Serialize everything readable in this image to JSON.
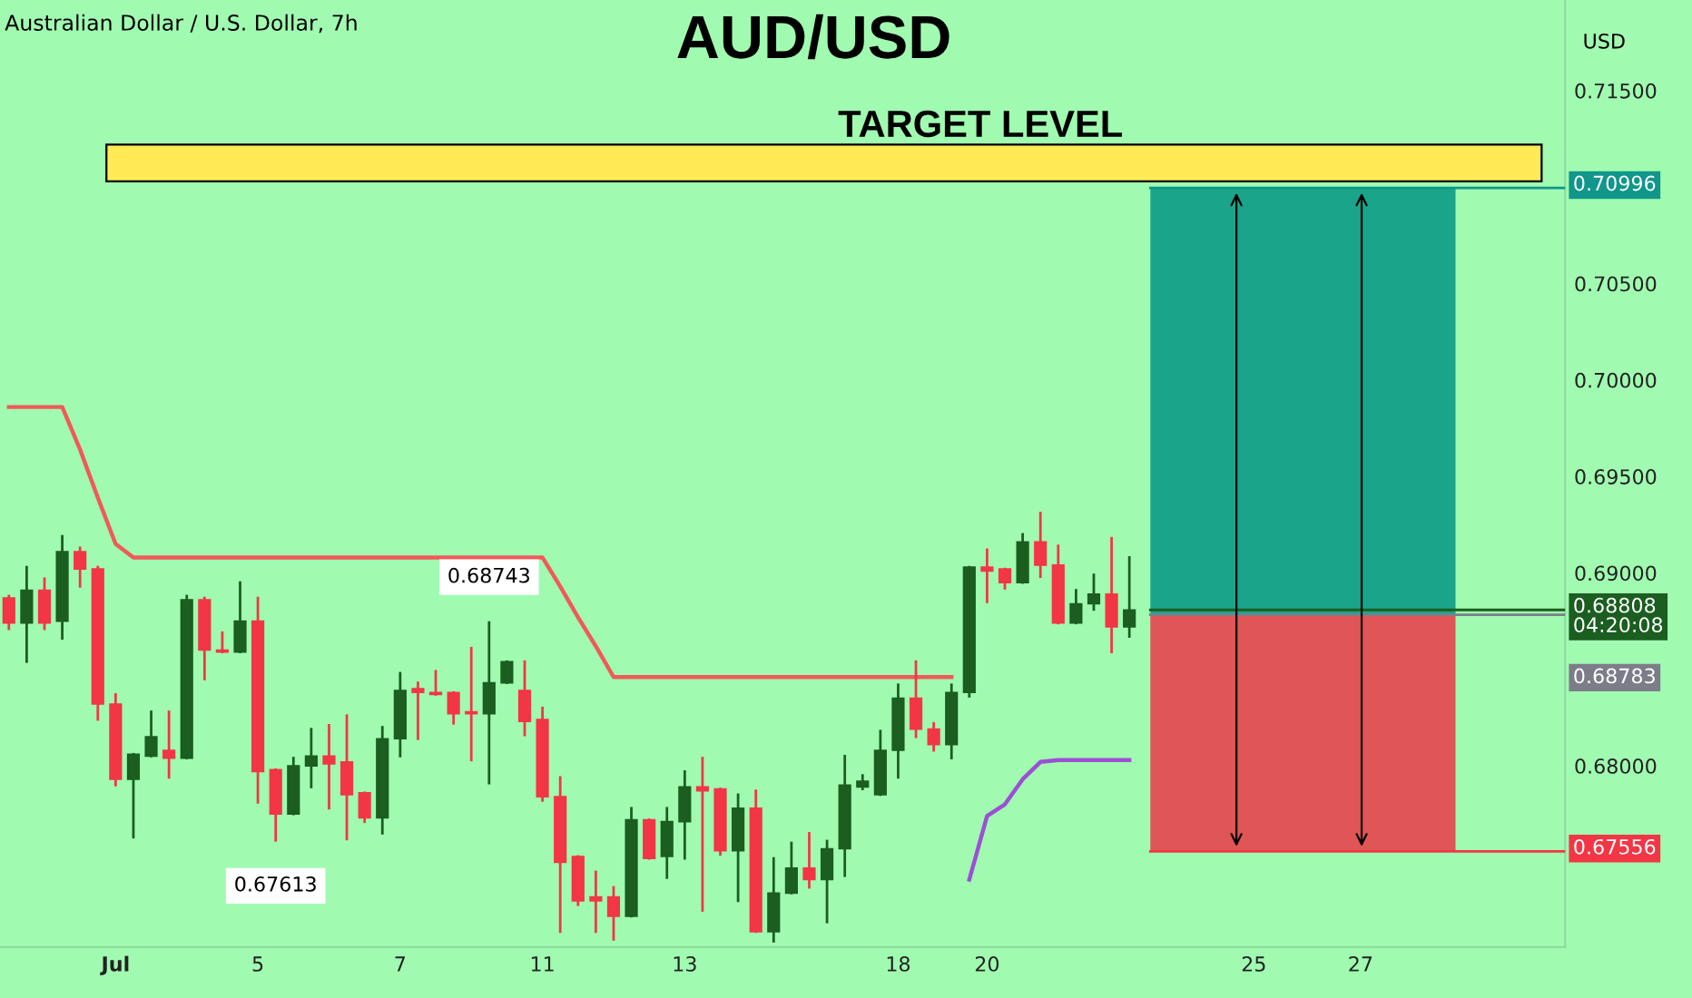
{
  "chart_data": {
    "type": "candlestick",
    "title": "AUD/USD",
    "subtitle": "Australian Dollar / U.S. Dollar, 7h",
    "ylabel": "USD",
    "categories": [
      null,
      null,
      null,
      null,
      null,
      null,
      "Jul",
      null,
      null,
      null,
      null,
      null,
      null,
      null,
      "5",
      null,
      null,
      null,
      null,
      null,
      null,
      null,
      "7",
      null,
      null,
      null,
      null,
      null,
      null,
      null,
      "11",
      null,
      null,
      null,
      null,
      null,
      null,
      null,
      "13",
      null,
      null,
      null,
      null,
      null,
      null,
      null,
      null,
      null,
      null,
      null,
      "18",
      null,
      null,
      null,
      null,
      "20",
      null,
      null,
      null,
      null,
      null,
      null,
      null,
      null,
      null,
      null,
      null,
      null,
      null,
      null,
      "25",
      null,
      null,
      null,
      null,
      null,
      "27",
      null,
      null,
      null,
      null,
      null,
      null,
      null,
      null,
      null,
      null,
      null
    ],
    "ohlc": [
      [
        0.6887,
        0.6888,
        0.6871,
        0.6874
      ],
      [
        0.6874,
        0.6903,
        0.6854,
        0.6891
      ],
      [
        0.6891,
        0.6897,
        0.6871,
        0.6874
      ],
      [
        0.6875,
        0.6919,
        0.6866,
        0.6911
      ],
      [
        0.6911,
        0.6913,
        0.6893,
        0.6902
      ],
      [
        0.6902,
        0.6903,
        0.6824,
        0.6832
      ],
      [
        0.6832,
        0.6837,
        0.679,
        0.6793
      ],
      [
        0.6793,
        0.6806,
        0.6763,
        0.6806
      ],
      [
        0.6805,
        0.6828,
        0.6805,
        0.6815
      ],
      [
        0.6808,
        0.6828,
        0.6794,
        0.6804
      ],
      [
        0.6804,
        0.6888,
        0.6804,
        0.6886
      ],
      [
        0.6886,
        0.6887,
        0.6845,
        0.686
      ],
      [
        0.686,
        0.6869,
        0.6859,
        0.6859
      ],
      [
        0.6859,
        0.6895,
        0.6859,
        0.6875
      ],
      [
        0.6875,
        0.6887,
        0.6781,
        0.6797
      ],
      [
        0.6798,
        0.6798,
        0.67613,
        0.6775
      ],
      [
        0.6775,
        0.6804,
        0.6775,
        0.68
      ],
      [
        0.68,
        0.6819,
        0.6789,
        0.6805
      ],
      [
        0.6805,
        0.6821,
        0.6778,
        0.6801
      ],
      [
        0.6802,
        0.6826,
        0.6762,
        0.6785
      ],
      [
        0.6786,
        0.6786,
        0.6771,
        0.6773
      ],
      [
        0.6773,
        0.682,
        0.6765,
        0.6814
      ],
      [
        0.6814,
        0.6848,
        0.6805,
        0.6839
      ],
      [
        0.684,
        0.6843,
        0.6814,
        0.6838
      ],
      [
        0.6838,
        0.6849,
        0.6837,
        0.6837
      ],
      [
        0.6838,
        0.6838,
        0.6822,
        0.6827
      ],
      [
        0.6828,
        0.6861,
        0.6803,
        0.6827
      ],
      [
        0.6827,
        0.68743,
        0.6791,
        0.6843
      ],
      [
        0.6843,
        0.6854,
        0.6843,
        0.6854
      ],
      [
        0.6839,
        0.6854,
        0.6816,
        0.6823
      ],
      [
        0.6824,
        0.683,
        0.6782,
        0.6784
      ],
      [
        0.6784,
        0.6794,
        0.6714,
        0.675
      ],
      [
        0.6753,
        0.6753,
        0.6728,
        0.673
      ],
      [
        0.6732,
        0.6745,
        0.6714,
        0.673
      ],
      [
        0.6732,
        0.6737,
        0.671,
        0.6722
      ],
      [
        0.6722,
        0.6778,
        0.6722,
        0.6772
      ],
      [
        0.6772,
        0.6772,
        0.6752,
        0.6752
      ],
      [
        0.6753,
        0.6778,
        0.6742,
        0.6771
      ],
      [
        0.6771,
        0.6797,
        0.6752,
        0.6789
      ],
      [
        0.6789,
        0.6804,
        0.6725,
        0.6787
      ],
      [
        0.6788,
        0.6788,
        0.6754,
        0.6756
      ],
      [
        0.6756,
        0.6785,
        0.673,
        0.6778
      ],
      [
        0.6778,
        0.6787,
        0.6714,
        0.6714
      ],
      [
        0.6714,
        0.6752,
        0.6709,
        0.6734
      ],
      [
        0.6734,
        0.676,
        0.6734,
        0.6747
      ],
      [
        0.6747,
        0.6765,
        0.6737,
        0.6741
      ],
      [
        0.6741,
        0.6761,
        0.6719,
        0.6757
      ],
      [
        0.6757,
        0.6805,
        0.6743,
        0.679
      ],
      [
        0.6789,
        0.6795,
        0.6788,
        0.6792
      ],
      [
        0.6785,
        0.6818,
        0.6785,
        0.6808
      ],
      [
        0.6808,
        0.6842,
        0.6794,
        0.6835
      ],
      [
        0.6835,
        0.6854,
        0.6815,
        0.6819
      ],
      [
        0.6819,
        0.6822,
        0.6808,
        0.6811
      ],
      [
        0.6811,
        0.6842,
        0.6804,
        0.6838
      ],
      [
        0.6838,
        0.6903,
        0.6836,
        0.6903
      ],
      [
        0.6903,
        0.6912,
        0.6885,
        0.6901
      ],
      [
        0.6902,
        0.6902,
        0.6892,
        0.6895
      ],
      [
        0.6895,
        0.692,
        0.6895,
        0.6916
      ],
      [
        0.6916,
        0.6931,
        0.6898,
        0.6904
      ],
      [
        0.6904,
        0.6914,
        0.6874,
        0.6874
      ],
      [
        0.6874,
        0.6891,
        0.6874,
        0.6884
      ],
      [
        0.6884,
        0.6899,
        0.6881,
        0.6889
      ],
      [
        0.6889,
        0.6918,
        0.6859,
        0.6872
      ],
      [
        0.6872,
        0.6908,
        0.6867,
        0.68808
      ],
      null,
      null,
      null,
      null,
      null,
      null,
      null,
      null,
      null,
      null,
      null,
      null,
      null,
      null,
      null,
      null,
      null,
      null,
      null,
      null,
      null,
      null,
      null,
      null
    ],
    "series": [
      {
        "type": "line",
        "color": "#f05a5a",
        "values": [
          0.6986,
          0.6986,
          0.6986,
          0.6986,
          0.6964,
          0.6939,
          0.6915,
          0.6908,
          0.6908,
          0.6908,
          0.6908,
          0.6908,
          0.6908,
          0.6908,
          0.6908,
          0.6908,
          0.6908,
          0.6908,
          0.6908,
          0.6908,
          0.6908,
          0.6908,
          0.6908,
          0.6908,
          0.6908,
          0.6908,
          0.6908,
          0.6908,
          0.6908,
          0.6908,
          0.6908,
          0.6893,
          0.6877,
          0.6862,
          0.6846,
          0.6846,
          0.6846,
          0.6846,
          0.6846,
          0.6846,
          0.6846,
          0.6846,
          0.6846,
          0.6846,
          0.6846,
          0.6846,
          0.6846,
          0.6846,
          0.6846,
          0.6846,
          0.6846,
          0.6846,
          0.6846,
          0.6846,
          null,
          null,
          null,
          null,
          null,
          null,
          null,
          null,
          null,
          null,
          null,
          null,
          null,
          null,
          null,
          null,
          null,
          null,
          null,
          null,
          null,
          null,
          null,
          null,
          null,
          null,
          null,
          null,
          null,
          null,
          null,
          null,
          null,
          null
        ]
      },
      {
        "type": "line",
        "color": "#9c4fd6",
        "values": [
          null,
          null,
          null,
          null,
          null,
          null,
          null,
          null,
          null,
          null,
          null,
          null,
          null,
          null,
          null,
          null,
          null,
          null,
          null,
          null,
          null,
          null,
          null,
          null,
          null,
          null,
          null,
          null,
          null,
          null,
          null,
          null,
          null,
          null,
          null,
          null,
          null,
          null,
          null,
          null,
          null,
          null,
          null,
          null,
          null,
          null,
          null,
          null,
          null,
          null,
          null,
          null,
          null,
          null,
          0.6741,
          0.6774,
          0.678,
          0.6793,
          0.6802,
          0.6803,
          0.6803,
          0.6803,
          0.6803,
          0.6803,
          null,
          null,
          null,
          null,
          null,
          null,
          null,
          null,
          null,
          null,
          null,
          null,
          null,
          null,
          null,
          null,
          null,
          null,
          null,
          null,
          null,
          null,
          null,
          null
        ]
      }
    ],
    "ylim": [
      0.6706,
      0.7197
    ],
    "yticks": [
      {
        "value": 0.715,
        "label": "0.71500"
      },
      {
        "value": 0.705,
        "label": "0.70500"
      },
      {
        "value": 0.7,
        "label": "0.70000"
      },
      {
        "value": 0.695,
        "label": "0.69500"
      },
      {
        "value": 0.69,
        "label": "0.69000"
      },
      {
        "value": 0.68,
        "label": "0.68000"
      }
    ],
    "bands": [
      {
        "axis": "y",
        "from": 0.7103,
        "to": 0.7122,
        "label": "TARGET LEVEL",
        "color": "#ffeb55"
      },
      {
        "axis": "y",
        "from": 0.68783,
        "to": 0.70996,
        "color": "#1aa58a"
      },
      {
        "axis": "y",
        "from": 0.67556,
        "to": 0.68783,
        "color": "#e05555"
      }
    ],
    "ref_lines": [
      {
        "axis": "y",
        "value": 0.70996,
        "label": "0.70996",
        "color": "#10968a"
      },
      {
        "axis": "y",
        "value": 0.68808,
        "label": "0.68808\n04:20:08",
        "color": "#1b5e20"
      },
      {
        "axis": "y",
        "value": 0.68783,
        "label": "0.68783",
        "color": "#7d7d8a"
      },
      {
        "axis": "y",
        "value": 0.67556,
        "label": "0.67556",
        "color": "#f23645"
      }
    ],
    "annotations": [
      {
        "text": "0.68743",
        "y": 0.68743
      },
      {
        "text": "0.67613",
        "y": 0.67613
      }
    ],
    "grid": false,
    "legend": false
  }
}
